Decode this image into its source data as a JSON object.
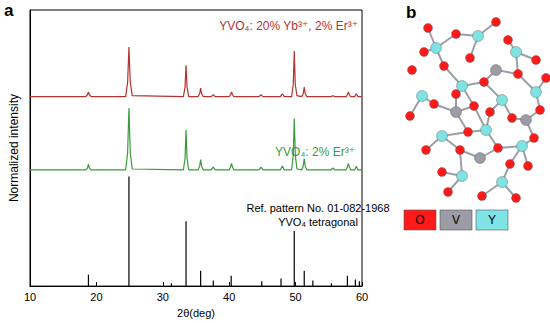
{
  "panel_labels": [
    "a",
    "b"
  ],
  "chart_data": {
    "type": "line",
    "x_label": "2θ(deg)",
    "y_label": "Normalized intensity",
    "xlim": [
      10,
      60
    ],
    "xticks": [
      10,
      20,
      30,
      40,
      50,
      60
    ],
    "ylim": [
      0,
      2.9
    ],
    "tick_labels": "x",
    "grid": false,
    "series": [
      {
        "name": "YVO₄: 20% Yb³⁺, 2% Er³⁺",
        "color": "#b5332e",
        "x": [
          10,
          18.4,
          18.65,
          18.8,
          18.95,
          19.2,
          24.4,
          24.7,
          24.9,
          25.1,
          25.4,
          33.1,
          33.35,
          33.5,
          33.65,
          33.9,
          35.3,
          35.55,
          35.7,
          35.85,
          36.1,
          37.3,
          37.6,
          37.9,
          40.0,
          40.2,
          40.35,
          40.5,
          40.7,
          44.5,
          44.8,
          45.1,
          47.7,
          48.0,
          48.3,
          49.4,
          49.65,
          49.8,
          49.95,
          50.2,
          50.9,
          51.15,
          51.3,
          51.45,
          51.7,
          55.3,
          55.6,
          55.9,
          57.6,
          57.8,
          57.95,
          58.1,
          58.3,
          58.9,
          59.15,
          59.4,
          60
        ],
        "values": [
          1.99,
          1.99,
          2.01,
          2.04,
          2.01,
          1.99,
          1.99,
          2.14,
          2.51,
          2.14,
          2.0,
          1.99,
          2.09,
          2.32,
          2.09,
          1.99,
          1.99,
          2.02,
          2.08,
          2.02,
          1.99,
          1.99,
          2.01,
          1.99,
          1.99,
          2.01,
          2.04,
          2.01,
          1.99,
          1.99,
          2.01,
          1.99,
          1.99,
          2.02,
          1.99,
          1.99,
          2.12,
          2.47,
          2.12,
          2.0,
          1.99,
          2.02,
          2.09,
          2.02,
          1.99,
          1.99,
          2.0,
          1.99,
          1.99,
          2.01,
          2.04,
          2.01,
          1.99,
          1.99,
          2.02,
          1.99,
          1.99
        ]
      },
      {
        "name": "YVO₄: 2% Er³⁺",
        "color": "#3c9a3c",
        "x": [
          10,
          18.4,
          18.65,
          18.8,
          18.95,
          19.2,
          24.4,
          24.7,
          24.9,
          25.1,
          25.4,
          33.1,
          33.35,
          33.5,
          33.65,
          33.9,
          35.3,
          35.55,
          35.7,
          35.85,
          36.1,
          37.3,
          37.6,
          37.9,
          40.0,
          40.2,
          40.35,
          40.5,
          40.7,
          44.5,
          44.8,
          45.1,
          47.7,
          48.0,
          48.3,
          49.4,
          49.65,
          49.8,
          49.95,
          50.2,
          50.9,
          51.15,
          51.3,
          51.45,
          51.7,
          55.3,
          55.6,
          55.9,
          57.6,
          57.8,
          57.95,
          58.1,
          58.3,
          58.9,
          59.15,
          59.4,
          60
        ],
        "values": [
          1.22,
          1.22,
          1.24,
          1.28,
          1.24,
          1.22,
          1.22,
          1.4,
          1.87,
          1.4,
          1.23,
          1.22,
          1.34,
          1.64,
          1.34,
          1.22,
          1.22,
          1.26,
          1.33,
          1.26,
          1.22,
          1.22,
          1.25,
          1.22,
          1.22,
          1.25,
          1.29,
          1.25,
          1.22,
          1.22,
          1.25,
          1.22,
          1.22,
          1.26,
          1.22,
          1.22,
          1.38,
          1.76,
          1.38,
          1.23,
          1.22,
          1.26,
          1.34,
          1.26,
          1.22,
          1.22,
          1.24,
          1.22,
          1.22,
          1.25,
          1.29,
          1.25,
          1.22,
          1.22,
          1.26,
          1.22,
          1.22
        ]
      },
      {
        "name": "YVO₄ tetragonal",
        "type": "bar",
        "color": "#000000",
        "x": [
          18.8,
          24.9,
          31.3,
          33.5,
          35.7,
          37.6,
          40.3,
          44.9,
          47.8,
          49.8,
          51.3,
          52.6,
          55.4,
          57.8,
          59.0,
          59.6
        ],
        "values": [
          0.12,
          1.15,
          0.03,
          0.68,
          0.16,
          0.06,
          0.11,
          0.05,
          0.08,
          0.58,
          0.16,
          0.06,
          0.03,
          0.11,
          0.07,
          0.05
        ]
      }
    ],
    "annotations": [
      "Ref. pattern No. 01-082-1968"
    ]
  },
  "structure": {
    "legend": [
      {
        "label": "O",
        "color": "#ff1a1a"
      },
      {
        "label": "V",
        "color": "#9c9ca6"
      },
      {
        "label": "Y",
        "color": "#7fe3e3"
      }
    ]
  }
}
